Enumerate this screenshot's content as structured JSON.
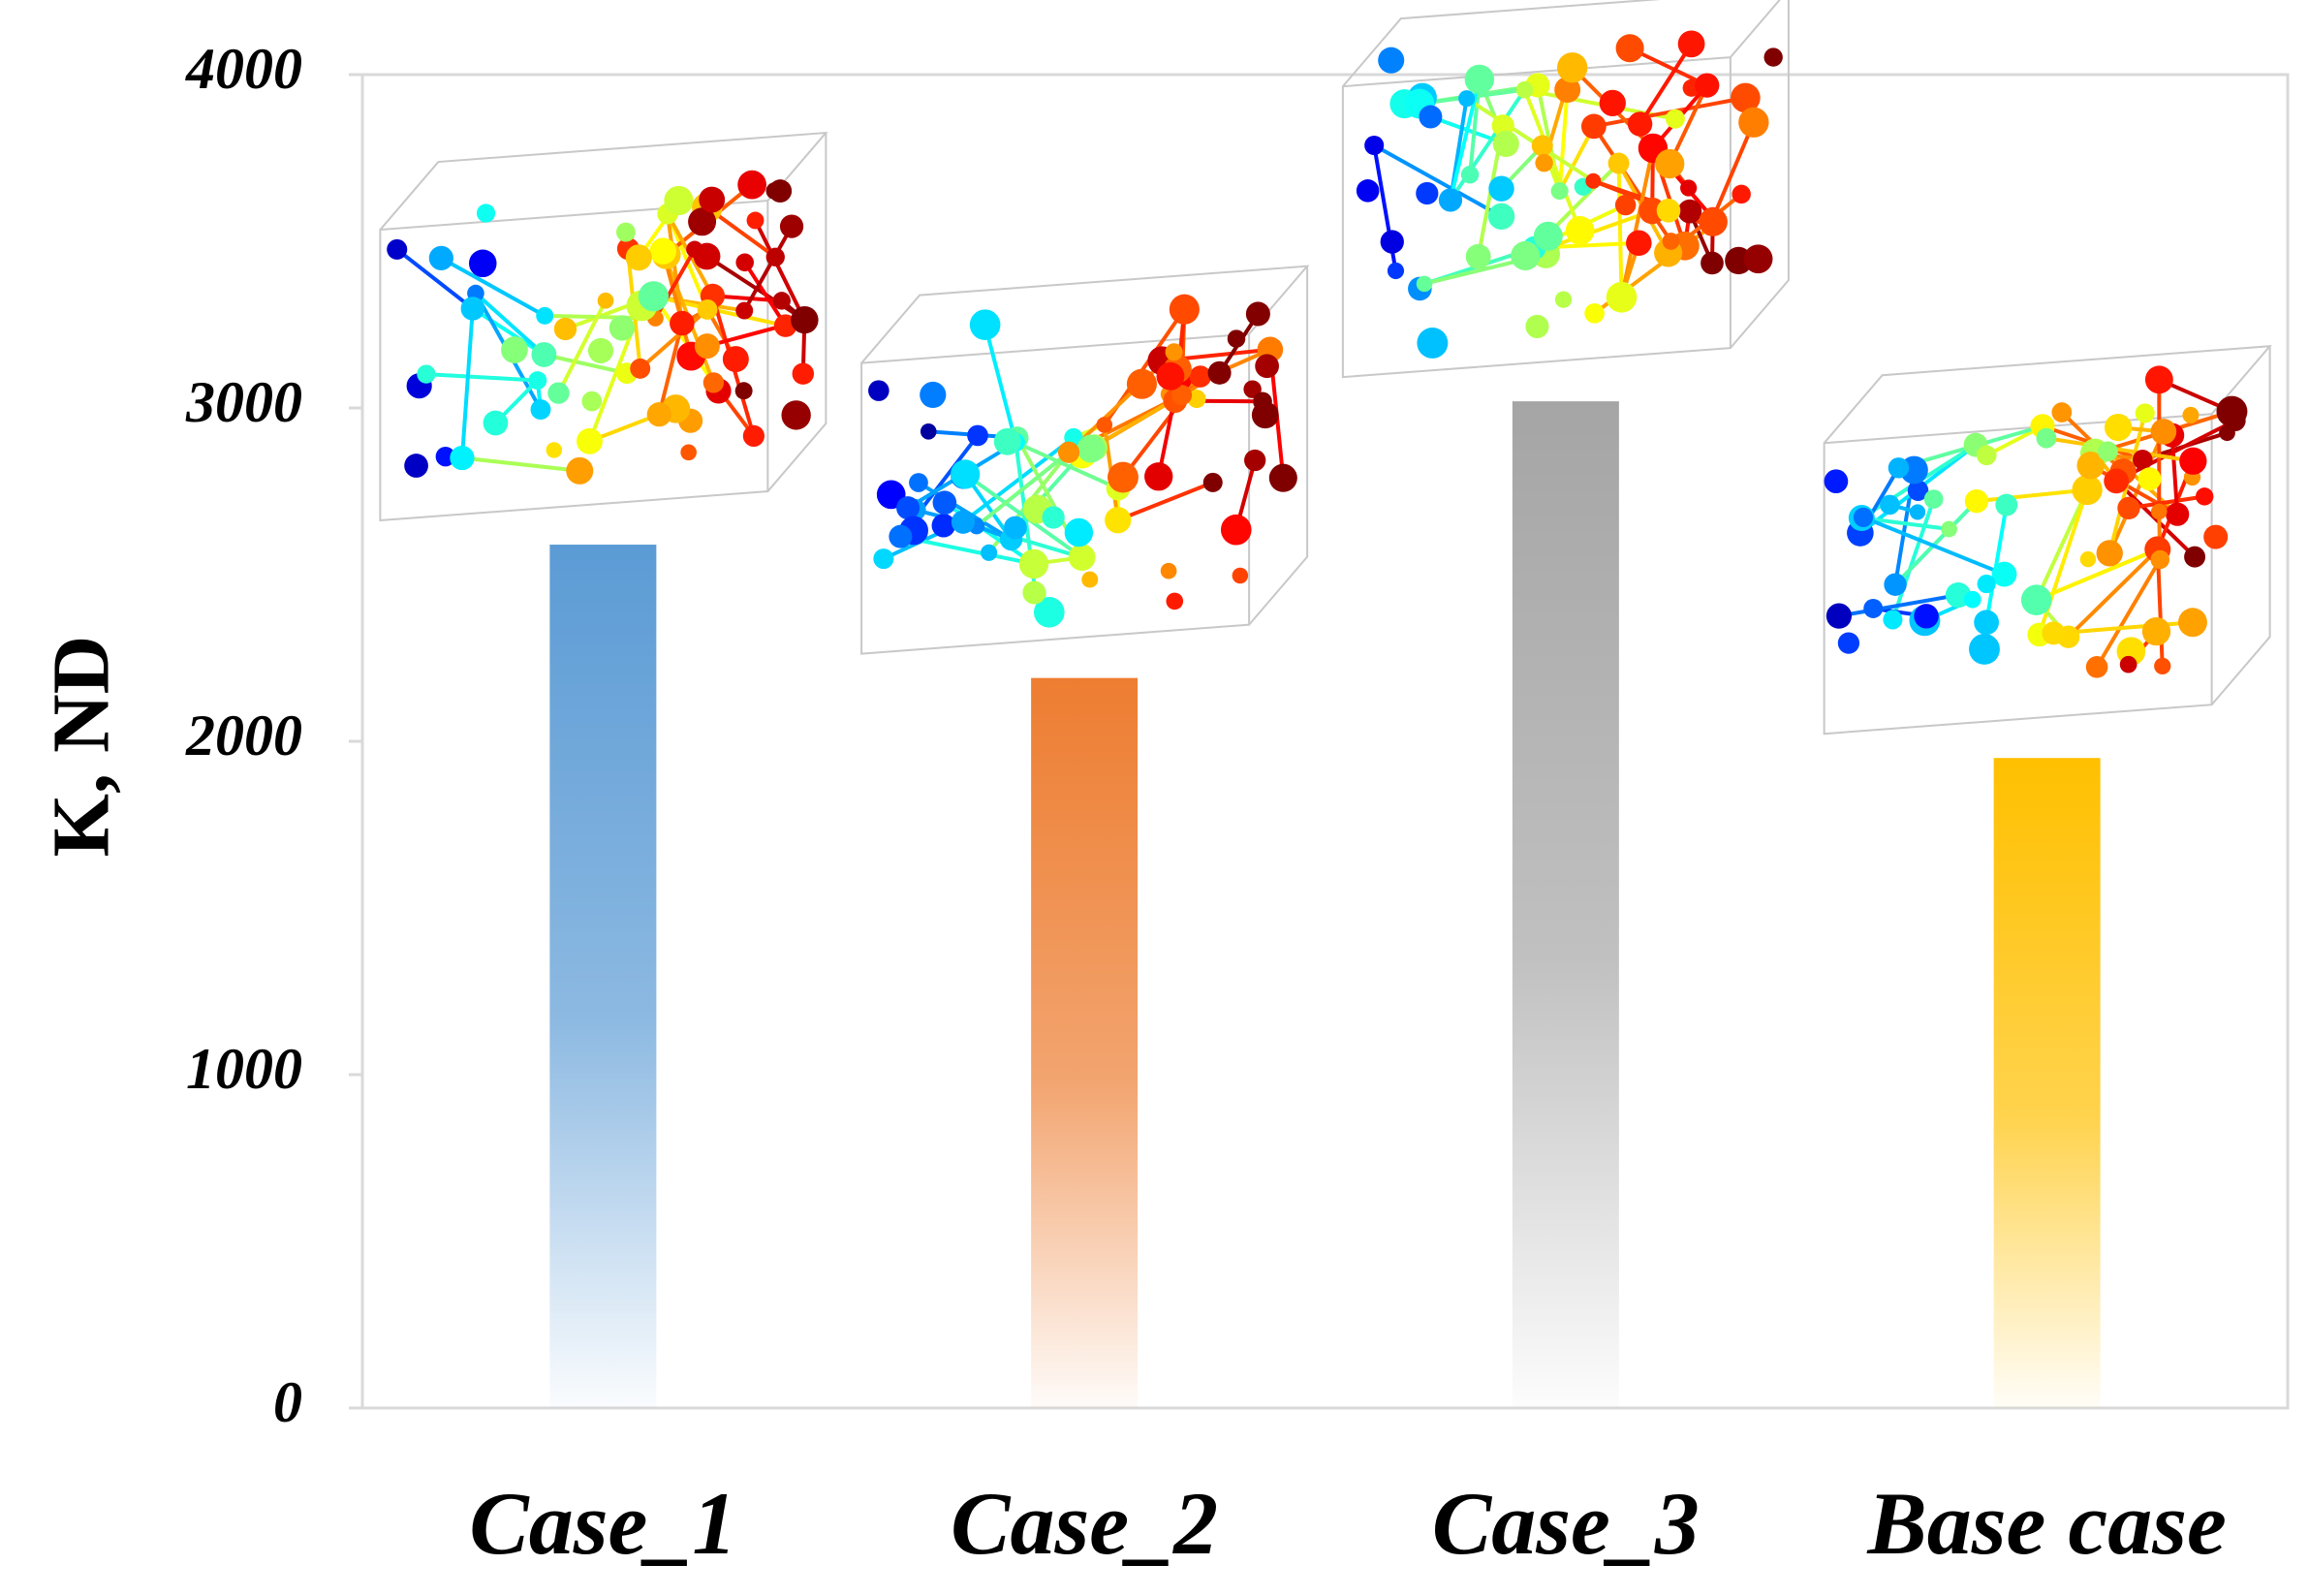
{
  "chart_data": {
    "type": "bar",
    "ylabel": "K, ND",
    "categories": [
      "Case_1",
      "Case_2",
      "Case_3",
      "Base case"
    ],
    "values": [
      2590,
      2190,
      3020,
      1950
    ],
    "colors": [
      "#5b9bd5",
      "#ed7d31",
      "#a5a5a5",
      "#ffc000"
    ],
    "ylim": [
      0,
      4000
    ],
    "yticks": [
      0,
      1000,
      2000,
      3000,
      4000
    ],
    "grid": false
  }
}
